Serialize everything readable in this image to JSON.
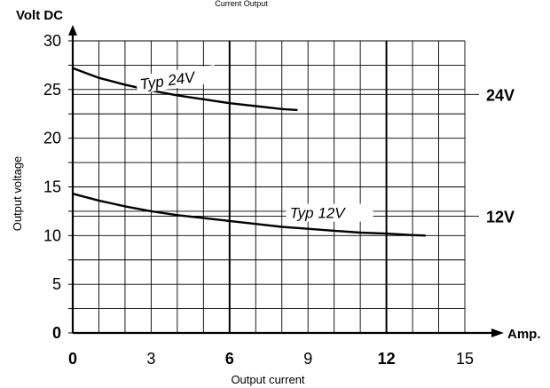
{
  "chart_data": {
    "type": "line",
    "top_note": "Current Output",
    "ylabel_top": "Volt DC",
    "ylabel": "Output voltage",
    "xlabel": "Output current",
    "xunit": "Amp.",
    "xlim": [
      0,
      15
    ],
    "ylim": [
      0,
      30
    ],
    "x_ticks": [
      {
        "label": "0",
        "value": 0,
        "bold": true
      },
      {
        "label": "3",
        "value": 3,
        "bold": false
      },
      {
        "label": "6",
        "value": 6,
        "bold": true
      },
      {
        "label": "9",
        "value": 9,
        "bold": false
      },
      {
        "label": "12",
        "value": 12,
        "bold": true
      },
      {
        "label": "15",
        "value": 15,
        "bold": false
      }
    ],
    "y_ticks": [
      {
        "label": "0",
        "value": 0,
        "bold": true
      },
      {
        "label": "5",
        "value": 5,
        "bold": false
      },
      {
        "label": "10",
        "value": 10,
        "bold": false
      },
      {
        "label": "15",
        "value": 15,
        "bold": false
      },
      {
        "label": "20",
        "value": 20,
        "bold": false
      },
      {
        "label": "25",
        "value": 25,
        "bold": false
      },
      {
        "label": "30",
        "value": 30,
        "bold": false
      }
    ],
    "grid": true,
    "bold_verticals": [
      6,
      12
    ],
    "reference_lines": [
      {
        "label": "24V",
        "value": 24.5
      },
      {
        "label": "12V",
        "value": 12
      }
    ],
    "series": [
      {
        "name": "Typ 24V",
        "x": [
          0,
          1,
          2,
          3,
          4,
          5,
          6,
          7,
          8,
          8.6
        ],
        "y": [
          27.2,
          26.2,
          25.5,
          24.9,
          24.4,
          24.0,
          23.6,
          23.3,
          23.0,
          22.9
        ]
      },
      {
        "name": "Typ 12V",
        "x": [
          0,
          1,
          2,
          3,
          4,
          5,
          6,
          7,
          8,
          9,
          10,
          11,
          12,
          13,
          13.5
        ],
        "y": [
          14.3,
          13.6,
          13.0,
          12.5,
          12.1,
          11.8,
          11.5,
          11.2,
          10.9,
          10.7,
          10.5,
          10.3,
          10.2,
          10.05,
          10.0
        ]
      }
    ]
  }
}
